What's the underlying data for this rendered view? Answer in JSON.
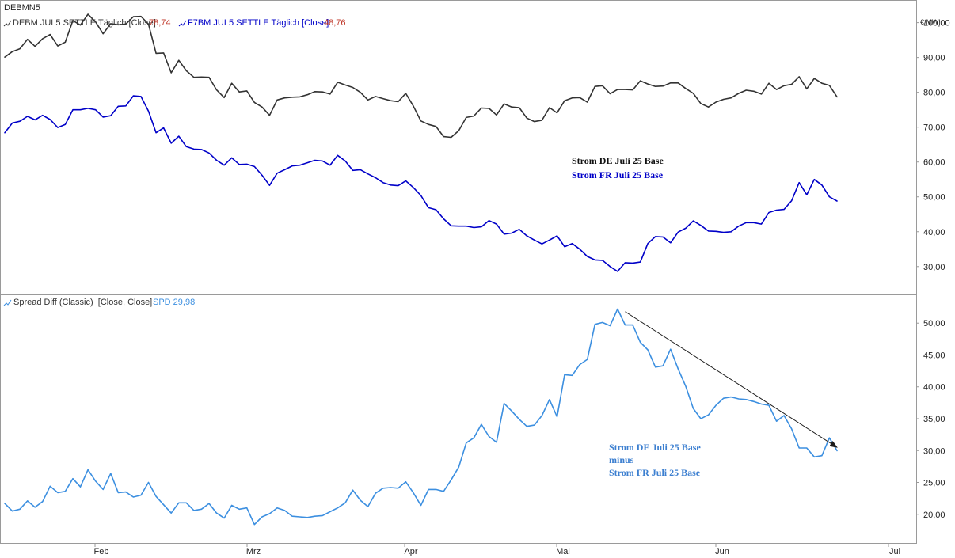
{
  "symbol": "DEBMN5",
  "colors": {
    "de": "#333333",
    "fr": "#0000c8",
    "spread": "#3c8fe0",
    "value_red": "#c0392b",
    "frame": "#9a9a9a",
    "arrow": "#1a1a1a"
  },
  "top_panel": {
    "unit": "€/MWh",
    "legend": [
      {
        "label": "DEBM JUL5 SETTLE Täglich [Close]",
        "value": "78,74",
        "icon": "line-chart-icon"
      },
      {
        "label": "F7BM JUL5 SETTLE Täglich [Close]",
        "value": "48,76",
        "icon": "line-chart-icon"
      }
    ],
    "annotation": {
      "line1": "Strom DE Juli 25 Base",
      "line2": "Strom FR Juli 25 Base"
    }
  },
  "bottom_panel": {
    "legend": {
      "label": "Spread Diff (Classic)  [Close, Close]",
      "value_label": "SPD 29,98",
      "icon": "line-chart-icon"
    },
    "annotation": {
      "line1": "Strom DE Juli 25 Base",
      "line2": "minus",
      "line3": "Strom FR Juli 25 Base"
    }
  },
  "x_axis_labels": [
    "Feb",
    "Mrz",
    "Apr",
    "Mai",
    "Jun",
    "Jul"
  ],
  "chart_data": [
    {
      "type": "line",
      "y_tick_labels": [
        "100,00",
        "90,00",
        "80,00",
        "70,00",
        "60,00",
        "50,00",
        "40,00",
        "30,00"
      ],
      "y_ticks": [
        100,
        90,
        80,
        70,
        60,
        50,
        40,
        30
      ],
      "ylim": [
        22,
        106.5
      ],
      "grid": false,
      "legend_position": "top-left",
      "series": [
        {
          "name": "DEBM JUL5 SETTLE Täglich [Close]",
          "values": [
            90.1,
            91.7,
            92.5,
            95.2,
            93.2,
            95.4,
            96.6,
            93.3,
            94.4,
            100.6,
            99.3,
            102.4,
            100.2,
            96.8,
            99.7,
            99.4,
            99.6,
            101.7,
            101.8,
            99.6,
            91.2,
            91.3,
            85.6,
            89.2,
            86.2,
            84.3,
            84.4,
            84.3,
            80.7,
            78.5,
            82.6,
            80.1,
            80.4,
            77.1,
            75.8,
            73.4,
            77.8,
            78.4,
            78.6,
            78.7,
            79.3,
            80.2,
            80.1,
            79.5,
            82.9,
            82.1,
            81.4,
            80.0,
            77.8,
            78.8,
            78.2,
            77.6,
            77.3,
            79.7,
            76.1,
            71.8,
            70.8,
            70.2,
            67.3,
            67.1,
            69.0,
            72.8,
            73.2,
            75.5,
            75.4,
            73.5,
            76.7,
            75.8,
            75.6,
            72.6,
            71.6,
            72.0,
            75.6,
            74.1,
            77.6,
            78.4,
            78.5,
            77.2,
            81.7,
            81.9,
            79.6,
            80.8,
            80.8,
            80.7,
            83.3,
            82.4,
            81.7,
            81.8,
            82.7,
            82.7,
            81.1,
            79.7,
            76.8,
            75.8,
            77.2,
            78.0,
            78.4,
            79.7,
            80.6,
            80.3,
            79.5,
            82.6,
            80.8,
            81.9,
            82.3,
            84.5,
            81.0,
            84.0,
            82.6,
            82.0,
            78.7
          ]
        },
        {
          "name": "F7BM JUL5 SETTLE Täglich [Close]",
          "values": [
            68.4,
            71.2,
            71.7,
            73.1,
            72.1,
            73.4,
            72.2,
            69.9,
            70.8,
            75.0,
            75.0,
            75.4,
            75.0,
            72.9,
            73.3,
            76.0,
            76.1,
            79.0,
            78.8,
            74.6,
            68.4,
            69.8,
            65.4,
            67.4,
            64.4,
            63.7,
            63.6,
            62.6,
            60.5,
            59.1,
            61.2,
            59.3,
            59.4,
            58.7,
            56.2,
            53.3,
            56.8,
            57.8,
            58.9,
            59.1,
            59.8,
            60.5,
            60.3,
            59.1,
            61.9,
            60.3,
            57.6,
            57.8,
            56.6,
            55.5,
            54.1,
            53.4,
            53.2,
            54.6,
            52.7,
            50.4,
            46.9,
            46.3,
            43.7,
            41.7,
            41.6,
            41.6,
            41.2,
            41.4,
            43.2,
            42.2,
            39.3,
            39.6,
            40.7,
            38.8,
            37.6,
            36.5,
            37.6,
            38.8,
            35.7,
            36.6,
            35.0,
            32.9,
            31.9,
            31.8,
            30.0,
            28.6,
            31.1,
            31.0,
            31.3,
            36.6,
            38.6,
            38.5,
            36.8,
            39.9,
            41.0,
            43.1,
            41.8,
            40.2,
            40.1,
            39.8,
            40.0,
            41.6,
            42.6,
            42.6,
            42.2,
            45.5,
            46.2,
            46.4,
            48.9,
            54.1,
            50.6,
            55.0,
            53.4,
            50.0,
            48.8
          ]
        }
      ]
    },
    {
      "type": "line",
      "y_tick_labels": [
        "50,00",
        "45,00",
        "40,00",
        "35,00",
        "30,00",
        "25,00",
        "20,00"
      ],
      "y_ticks": [
        50,
        45,
        40,
        35,
        30,
        25,
        20
      ],
      "ylim": [
        15.5,
        54.5
      ],
      "grid": false,
      "legend_position": "top-left",
      "series": [
        {
          "name": "SPD",
          "values": [
            21.7,
            20.5,
            20.8,
            22.1,
            21.1,
            22.0,
            24.4,
            23.4,
            23.6,
            25.6,
            24.3,
            27.0,
            25.2,
            23.9,
            26.4,
            23.4,
            23.5,
            22.7,
            23.0,
            25.0,
            22.8,
            21.5,
            20.2,
            21.8,
            21.8,
            20.6,
            20.8,
            21.7,
            20.2,
            19.4,
            21.4,
            20.8,
            21.0,
            18.4,
            19.6,
            20.1,
            21.0,
            20.6,
            19.7,
            19.6,
            19.5,
            19.7,
            19.8,
            20.4,
            21.0,
            21.8,
            23.8,
            22.2,
            21.2,
            23.3,
            24.1,
            24.2,
            24.1,
            25.1,
            23.4,
            21.4,
            23.9,
            23.9,
            23.6,
            25.4,
            27.4,
            31.2,
            32.0,
            34.1,
            32.2,
            31.3,
            37.4,
            36.2,
            34.9,
            33.8,
            34.0,
            35.5,
            38.0,
            35.3,
            41.9,
            41.8,
            43.5,
            44.3,
            49.8,
            50.1,
            49.6,
            52.2,
            49.7,
            49.7,
            47.0,
            45.8,
            43.1,
            43.3,
            45.9,
            42.8,
            40.1,
            36.6,
            35.0,
            35.6,
            37.1,
            38.2,
            38.4,
            38.1,
            38.0,
            37.7,
            37.3,
            37.1,
            34.6,
            35.5,
            33.4,
            30.4,
            30.4,
            29.0,
            29.2,
            32.0,
            29.98
          ]
        }
      ],
      "trend_arrow": {
        "from_index": 82,
        "from_value": 51.8,
        "to_index": 110,
        "to_value": 30.5
      }
    }
  ]
}
